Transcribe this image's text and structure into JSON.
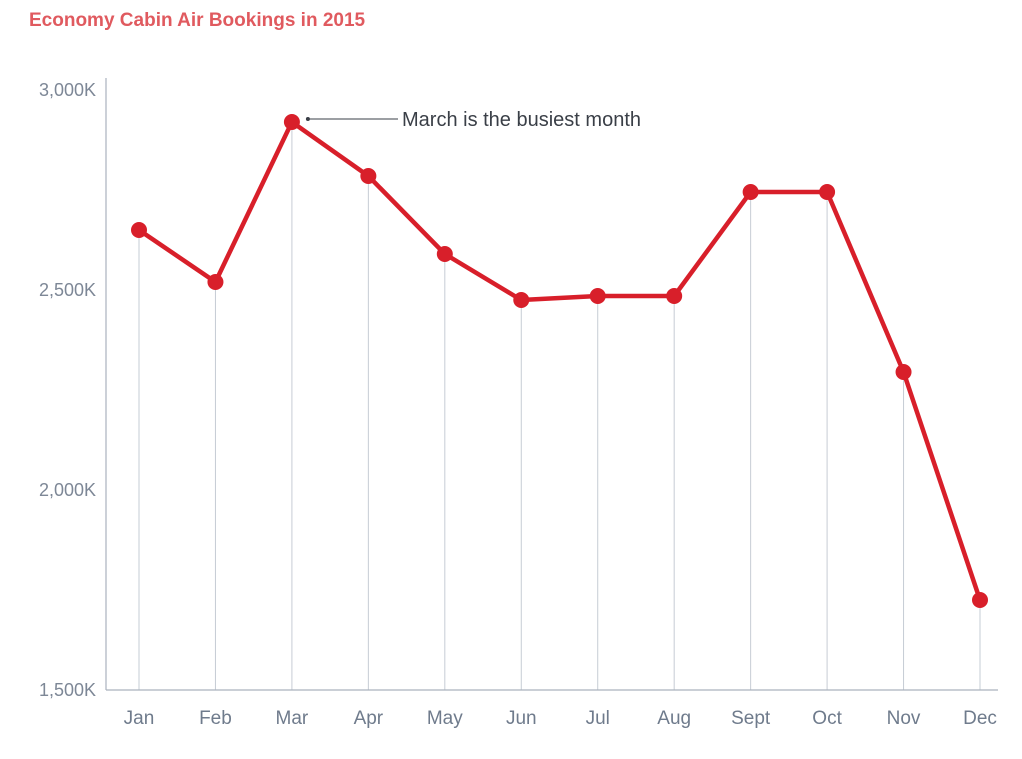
{
  "chart_data": {
    "type": "line",
    "title": "Economy Cabin Air Bookings in 2015",
    "xlabel": "",
    "ylabel": "",
    "categories": [
      "Jan",
      "Feb",
      "Mar",
      "Apr",
      "May",
      "Jun",
      "Jul",
      "Aug",
      "Sept",
      "Oct",
      "Nov",
      "Dec"
    ],
    "series": [
      {
        "values": [
          2650,
          2520,
          2920,
          2785,
          2590,
          2475,
          2485,
          2485,
          2745,
          2745,
          2295,
          1725
        ]
      }
    ],
    "ylim": [
      1500,
      3000
    ],
    "yticks": [
      1500,
      2000,
      2500,
      3000
    ],
    "ytick_labels": [
      "1,500K",
      "2,000K",
      "2,500K",
      "3,000K"
    ],
    "grid": "vertical drop lines",
    "legend": "none",
    "annotation": {
      "text": "March is the busiest month",
      "category": "Mar"
    },
    "colors": {
      "line": "#d81f2a",
      "marker": "#d81f2a",
      "title": "#e05a5f",
      "axis": "#aab2bd",
      "dropline": "#c6ccd4"
    }
  }
}
